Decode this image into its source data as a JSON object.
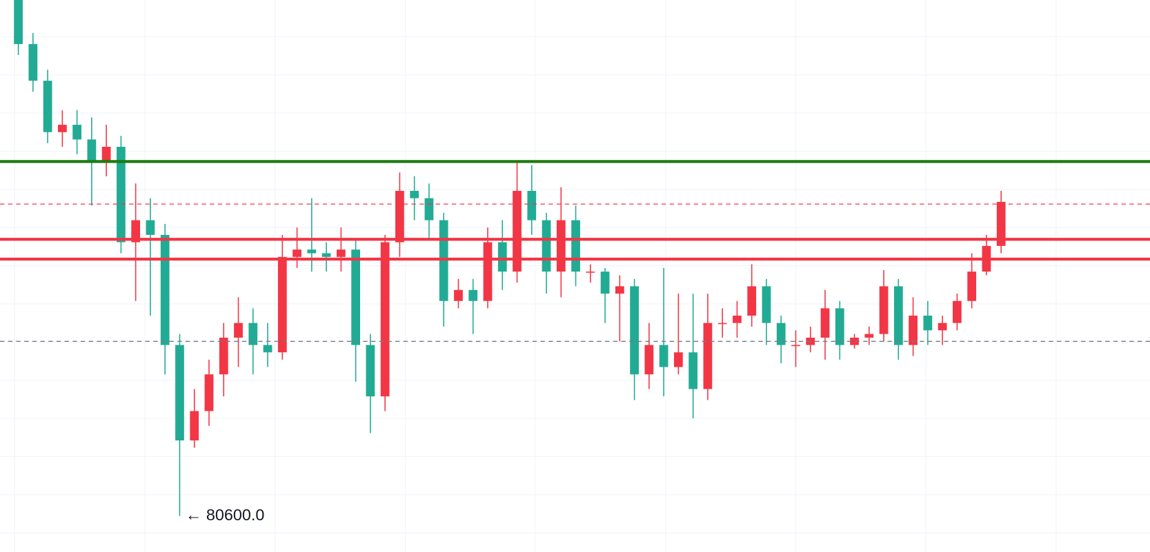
{
  "chart_data": {
    "type": "candlestick",
    "up_color": "#f23645",
    "down_color": "#22ab94",
    "ylim": [
      80110,
      87630
    ],
    "annotation": "← 80600.0",
    "hlines": [
      {
        "value": 85430,
        "color": "#1e7a0e",
        "style": "solid"
      },
      {
        "value": 84850,
        "color": "#f23645",
        "style": "dashed"
      },
      {
        "value": 84370,
        "color": "#f23645",
        "style": "solid"
      },
      {
        "value": 84100,
        "color": "#f23645",
        "style": "solid"
      },
      {
        "value": 82980,
        "color": "#787b86",
        "style": "dashed"
      }
    ],
    "open": [
      87630,
      87030,
      86530,
      85830,
      85930,
      85730,
      85430,
      85630,
      84330,
      84630,
      84430,
      82930,
      81630,
      82030,
      82530,
      83030,
      83230,
      82930,
      82830,
      84130,
      84230,
      84180,
      84130,
      84230,
      82930,
      82230,
      84330,
      85030,
      84930,
      84630,
      83530,
      83680,
      83530,
      84330,
      83930,
      85030,
      84630,
      83930,
      84630,
      83930,
      83930,
      83630,
      83730,
      82530,
      82930,
      82630,
      82830,
      82330,
      83230,
      83230,
      83330,
      83730,
      83230,
      82930,
      82930,
      83030,
      83430,
      82930,
      83030,
      83080,
      83730,
      82930,
      83330,
      83130,
      83230,
      83530,
      83930,
      84280
    ],
    "high": [
      87630,
      87180,
      86680,
      86130,
      86130,
      86030,
      85930,
      85780,
      85130,
      84930,
      84580,
      83080,
      82330,
      82730,
      83230,
      83580,
      83430,
      83230,
      84430,
      84530,
      84930,
      84330,
      84530,
      84380,
      83080,
      84430,
      85280,
      85230,
      85130,
      84730,
      83830,
      83830,
      84530,
      84630,
      85410,
      85380,
      84730,
      85080,
      84830,
      84030,
      83980,
      83880,
      83830,
      83230,
      83980,
      83630,
      83630,
      83630,
      83430,
      83530,
      84030,
      83830,
      83330,
      83130,
      83180,
      83680,
      83530,
      83080,
      83180,
      83950,
      83830,
      83580,
      83530,
      83330,
      83630,
      84180,
      84430,
      85030
    ],
    "low": [
      86880,
      86380,
      85680,
      85630,
      85530,
      84830,
      85230,
      84180,
      83530,
      83330,
      82530,
      80600,
      81530,
      81830,
      82230,
      82630,
      82530,
      82630,
      82730,
      83980,
      83930,
      83930,
      83930,
      82430,
      81730,
      82030,
      84130,
      84630,
      84380,
      83180,
      83430,
      83080,
      83430,
      83680,
      83780,
      84430,
      83630,
      83580,
      83730,
      83780,
      83230,
      82980,
      82180,
      82330,
      82230,
      82530,
      81930,
      82180,
      83030,
      83030,
      83180,
      82930,
      82680,
      82630,
      82830,
      82730,
      82730,
      82880,
      82930,
      82980,
      82730,
      82780,
      82930,
      82930,
      83130,
      83430,
      83880,
      84180
    ],
    "close": [
      87030,
      86530,
      85830,
      85930,
      85730,
      85430,
      85630,
      84330,
      84630,
      84430,
      82930,
      81630,
      82030,
      82530,
      83030,
      83230,
      82930,
      82830,
      84130,
      84230,
      84180,
      84130,
      84230,
      82930,
      82230,
      84330,
      85030,
      84930,
      84630,
      83530,
      83680,
      83530,
      84330,
      83930,
      85030,
      84630,
      83930,
      84630,
      83930,
      83930,
      83630,
      83730,
      82530,
      82930,
      82630,
      82830,
      82330,
      83230,
      83230,
      83330,
      83730,
      83230,
      82930,
      82930,
      83030,
      83430,
      82930,
      83030,
      83080,
      83730,
      82930,
      83330,
      83130,
      83230,
      83530,
      83930,
      84280,
      84880
    ]
  }
}
